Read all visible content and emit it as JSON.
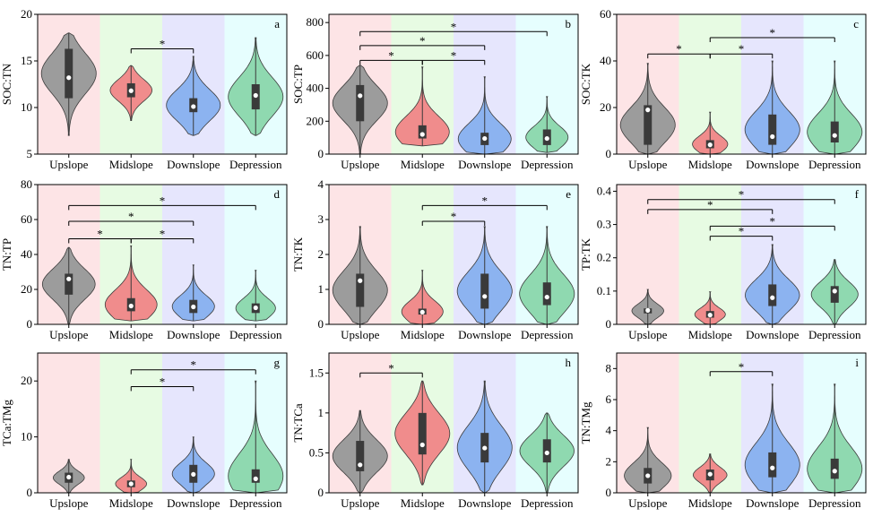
{
  "colors": {
    "region_bg": [
      "#fde4e6",
      "#e7fbe3",
      "#e6e6fd",
      "#e6fefe"
    ],
    "violin": [
      "#9c9c9c",
      "#f08c8c",
      "#8cb3f0",
      "#8fd9b0"
    ],
    "box": "#3a3a3a",
    "median_dot": "#ffffff",
    "axis": "#000000"
  },
  "chart_data": [
    {
      "type": "violin",
      "panel": "a",
      "ylabel": "SOC:TN",
      "categories": [
        "Upslope",
        "Midslope",
        "Downslope",
        "Depression"
      ],
      "ylim": [
        5,
        20
      ],
      "yticks": [
        5,
        10,
        15,
        20
      ],
      "series": [
        {
          "min": 7,
          "max": 18,
          "q1": 11,
          "q3": 16.3,
          "mean": 13.2
        },
        {
          "min": 8.6,
          "max": 14.5,
          "q1": 11.1,
          "q3": 12.6,
          "mean": 11.8
        },
        {
          "min": 7,
          "max": 15.5,
          "q1": 9.5,
          "q3": 11,
          "mean": 10.1
        },
        {
          "min": 7,
          "max": 17.5,
          "q1": 9.8,
          "q3": 12.5,
          "mean": 11.3
        }
      ],
      "significance": [
        {
          "from": 1,
          "to": 2,
          "level": 16.3,
          "label": "*"
        }
      ]
    },
    {
      "type": "violin",
      "panel": "b",
      "ylabel": "SOC:TP",
      "categories": [
        "Upslope",
        "Midslope",
        "Downslope",
        "Depression"
      ],
      "ylim": [
        0,
        850
      ],
      "yticks": [
        0,
        200,
        400,
        600,
        800
      ],
      "series": [
        {
          "min": 0,
          "max": 540,
          "q1": 200,
          "q3": 420,
          "mean": 355
        },
        {
          "min": 50,
          "max": 530,
          "q1": 95,
          "q3": 175,
          "mean": 120
        },
        {
          "min": 0,
          "max": 470,
          "q1": 55,
          "q3": 130,
          "mean": 95
        },
        {
          "min": 10,
          "max": 350,
          "q1": 55,
          "q3": 150,
          "mean": 95
        }
      ],
      "significance": [
        {
          "from": 0,
          "to": 3,
          "level": 745,
          "label": "*"
        },
        {
          "from": 0,
          "to": 2,
          "level": 660,
          "label": "*"
        },
        {
          "from": 0,
          "to": 1,
          "level": 570,
          "label": "*"
        },
        {
          "from": 1,
          "to": 2,
          "level": 570,
          "label": "*"
        }
      ]
    },
    {
      "type": "violin",
      "panel": "c",
      "ylabel": "SOC:TK",
      "categories": [
        "Upslope",
        "Midslope",
        "Downslope",
        "Depression"
      ],
      "ylim": [
        0,
        60
      ],
      "yticks": [
        0,
        20,
        40,
        60
      ],
      "series": [
        {
          "min": 0,
          "max": 39,
          "q1": 4,
          "q3": 21,
          "mean": 19
        },
        {
          "min": 0,
          "max": 18,
          "q1": 2.5,
          "q3": 6,
          "mean": 4
        },
        {
          "min": 0,
          "max": 40,
          "q1": 4,
          "q3": 17,
          "mean": 7.5
        },
        {
          "min": 0,
          "max": 40,
          "q1": 5,
          "q3": 14,
          "mean": 8
        }
      ],
      "significance": [
        {
          "from": 1,
          "to": 3,
          "level": 50,
          "label": "*"
        },
        {
          "from": 0,
          "to": 1,
          "level": 43,
          "label": "*"
        },
        {
          "from": 1,
          "to": 2,
          "level": 43,
          "label": "*"
        }
      ]
    },
    {
      "type": "violin",
      "panel": "d",
      "ylabel": "TN:TP",
      "categories": [
        "Upslope",
        "Midslope",
        "Downslope",
        "Depression"
      ],
      "ylim": [
        0,
        80
      ],
      "yticks": [
        0,
        20,
        40,
        60,
        80
      ],
      "series": [
        {
          "min": 0,
          "max": 44,
          "q1": 17,
          "q3": 29,
          "mean": 26
        },
        {
          "min": 2,
          "max": 45,
          "q1": 7.5,
          "q3": 15,
          "mean": 10.5
        },
        {
          "min": 2,
          "max": 34,
          "q1": 6.5,
          "q3": 14,
          "mean": 10
        },
        {
          "min": 2,
          "max": 31,
          "q1": 6.5,
          "q3": 12,
          "mean": 9.5
        }
      ],
      "significance": [
        {
          "from": 0,
          "to": 3,
          "level": 68,
          "label": "*"
        },
        {
          "from": 0,
          "to": 2,
          "level": 59,
          "label": "*"
        },
        {
          "from": 0,
          "to": 1,
          "level": 49,
          "label": "*"
        },
        {
          "from": 1,
          "to": 2,
          "level": 49,
          "label": "*"
        }
      ]
    },
    {
      "type": "violin",
      "panel": "e",
      "ylabel": "TN:TK",
      "categories": [
        "Upslope",
        "Midslope",
        "Downslope",
        "Depression"
      ],
      "ylim": [
        0,
        4
      ],
      "yticks": [
        0,
        1,
        2,
        3,
        4
      ],
      "series": [
        {
          "min": 0,
          "max": 2.8,
          "q1": 0.5,
          "q3": 1.45,
          "mean": 1.25
        },
        {
          "min": 0,
          "max": 1.55,
          "q1": 0.28,
          "q3": 0.45,
          "mean": 0.35
        },
        {
          "min": 0,
          "max": 2.8,
          "q1": 0.45,
          "q3": 1.45,
          "mean": 0.8
        },
        {
          "min": 0,
          "max": 2.8,
          "q1": 0.55,
          "q3": 1.2,
          "mean": 0.78
        }
      ],
      "significance": [
        {
          "from": 1,
          "to": 3,
          "level": 3.4,
          "label": "*"
        },
        {
          "from": 1,
          "to": 2,
          "level": 2.95,
          "label": "*"
        }
      ]
    },
    {
      "type": "violin",
      "panel": "f",
      "ylabel": "TP:TK",
      "categories": [
        "Upslope",
        "Midslope",
        "Downslope",
        "Depression"
      ],
      "ylim": [
        0,
        0.42
      ],
      "yticks": [
        0,
        0.1,
        0.2,
        0.3,
        0.4
      ],
      "series": [
        {
          "min": 0,
          "max": 0.105,
          "q1": 0.033,
          "q3": 0.048,
          "mean": 0.042
        },
        {
          "min": 0,
          "max": 0.098,
          "q1": 0.02,
          "q3": 0.04,
          "mean": 0.028
        },
        {
          "min": 0,
          "max": 0.24,
          "q1": 0.055,
          "q3": 0.12,
          "mean": 0.08
        },
        {
          "min": 0,
          "max": 0.195,
          "q1": 0.065,
          "q3": 0.115,
          "mean": 0.1
        }
      ],
      "significance": [
        {
          "from": 0,
          "to": 3,
          "level": 0.375,
          "label": "*"
        },
        {
          "from": 0,
          "to": 2,
          "level": 0.345,
          "label": "*"
        },
        {
          "from": 1,
          "to": 3,
          "level": 0.295,
          "label": "*"
        },
        {
          "from": 1,
          "to": 2,
          "level": 0.265,
          "label": "*"
        }
      ]
    },
    {
      "type": "violin",
      "panel": "g",
      "ylabel": "TCa:TMg",
      "categories": [
        "Upslope",
        "Midslope",
        "Downslope",
        "Depression"
      ],
      "ylim": [
        0,
        25
      ],
      "yticks": [
        0,
        10,
        20
      ],
      "series": [
        {
          "min": 0,
          "max": 6,
          "q1": 1.8,
          "q3": 3.6,
          "mean": 2.8
        },
        {
          "min": 0,
          "max": 6,
          "q1": 1,
          "q3": 2.2,
          "mean": 1.6
        },
        {
          "min": 0,
          "max": 10,
          "q1": 1.8,
          "q3": 5,
          "mean": 3.3
        },
        {
          "min": 0,
          "max": 20,
          "q1": 1.8,
          "q3": 4.2,
          "mean": 2.5
        }
      ],
      "significance": [
        {
          "from": 1,
          "to": 3,
          "level": 22,
          "label": "*"
        },
        {
          "from": 1,
          "to": 2,
          "level": 19,
          "label": "*"
        }
      ]
    },
    {
      "type": "violin",
      "panel": "h",
      "ylabel": "TN:TCa",
      "categories": [
        "Upslope",
        "Midslope",
        "Downslope",
        "Depression"
      ],
      "ylim": [
        0,
        1.75
      ],
      "yticks": [
        0,
        0.5,
        1.0,
        1.5
      ],
      "series": [
        {
          "min": 0,
          "max": 1.03,
          "q1": 0.27,
          "q3": 0.65,
          "mean": 0.35
        },
        {
          "min": 0.1,
          "max": 1.4,
          "q1": 0.48,
          "q3": 1.0,
          "mean": 0.6
        },
        {
          "min": 0,
          "max": 1.4,
          "q1": 0.38,
          "q3": 0.75,
          "mean": 0.56
        },
        {
          "min": 0,
          "max": 1.0,
          "q1": 0.38,
          "q3": 0.67,
          "mean": 0.5
        }
      ],
      "significance": [
        {
          "from": 0,
          "to": 1,
          "level": 1.5,
          "label": "*"
        }
      ]
    },
    {
      "type": "violin",
      "panel": "i",
      "ylabel": "TN:TMg",
      "categories": [
        "Upslope",
        "Midslope",
        "Downslope",
        "Depression"
      ],
      "ylim": [
        0,
        9
      ],
      "yticks": [
        0,
        2,
        4,
        6,
        8
      ],
      "series": [
        {
          "min": 0,
          "max": 4.2,
          "q1": 0.6,
          "q3": 1.6,
          "mean": 1.1
        },
        {
          "min": 0,
          "max": 2.5,
          "q1": 0.8,
          "q3": 1.5,
          "mean": 1.2
        },
        {
          "min": 0,
          "max": 7,
          "q1": 1,
          "q3": 2.6,
          "mean": 1.6
        },
        {
          "min": 0,
          "max": 7,
          "q1": 0.9,
          "q3": 2.2,
          "mean": 1.4
        }
      ],
      "significance": [
        {
          "from": 1,
          "to": 2,
          "level": 7.8,
          "label": "*"
        }
      ]
    }
  ]
}
